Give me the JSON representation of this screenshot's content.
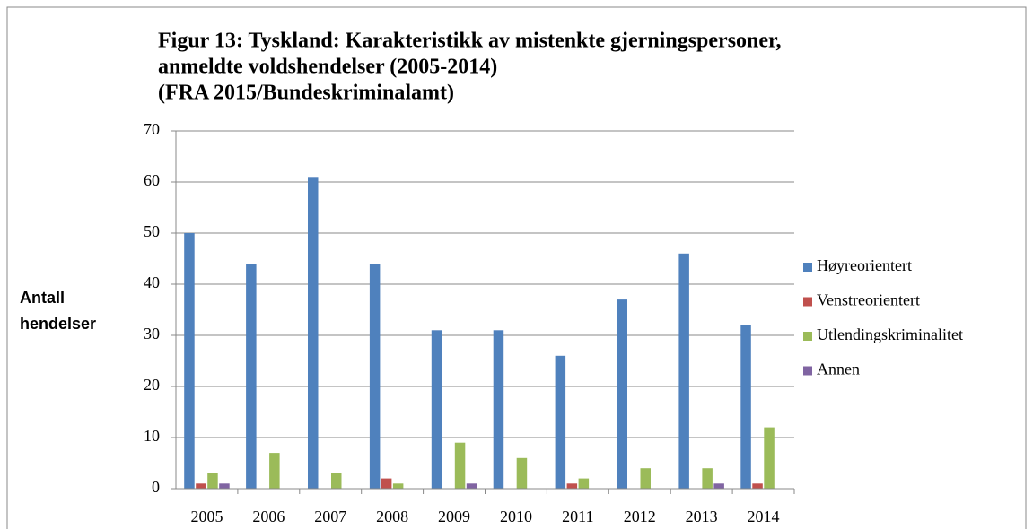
{
  "chart_data": {
    "type": "bar",
    "title": [
      "Figur 13: Tyskland: Karakteristikk av mistenkte gjerningspersoner,",
      "anmeldte voldshendelser (2005-2014)",
      "(FRA 2015/Bundeskriminalamt)"
    ],
    "ylabel": [
      "Antall",
      "hendelser"
    ],
    "categories": [
      "2005",
      "2006",
      "2007",
      "2008",
      "2009",
      "2010",
      "2011",
      "2012",
      "2013",
      "2014"
    ],
    "series": [
      {
        "name": "Høyreorientert",
        "color": "#4f81bd",
        "values": [
          50,
          44,
          61,
          44,
          31,
          31,
          26,
          37,
          46,
          32
        ]
      },
      {
        "name": "Venstreorientert",
        "color": "#c0504d",
        "values": [
          1,
          0,
          0,
          2,
          0,
          0,
          1,
          0,
          0,
          1
        ]
      },
      {
        "name": "Utlendingskriminalitet",
        "color": "#9bbb59",
        "values": [
          3,
          7,
          3,
          1,
          9,
          6,
          2,
          4,
          4,
          12
        ]
      },
      {
        "name": "Annen",
        "color": "#8064a2",
        "values": [
          1,
          0,
          0,
          0,
          1,
          0,
          0,
          0,
          1,
          0
        ]
      }
    ],
    "ylim": [
      0,
      70
    ],
    "yticks": [
      0,
      10,
      20,
      30,
      40,
      50,
      60,
      70
    ],
    "grid": true,
    "legend": "right"
  }
}
